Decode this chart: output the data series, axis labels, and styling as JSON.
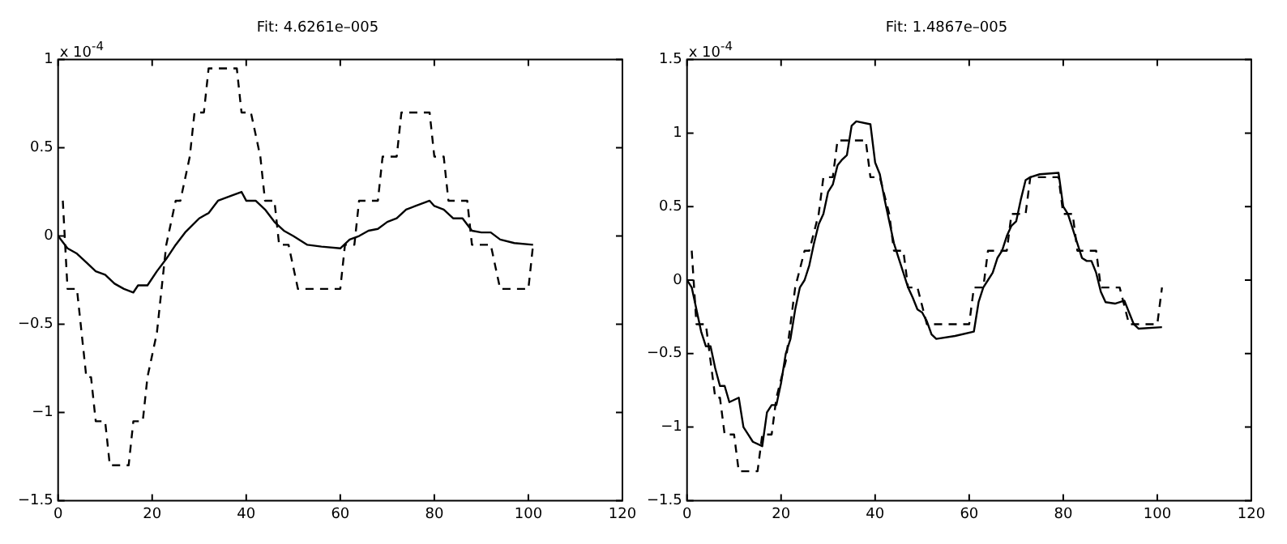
{
  "chart_data": [
    {
      "type": "line",
      "title": "Fit: 4.6261e–005",
      "annotations": [
        "x 10$^{-4}$"
      ],
      "xlim": [
        0,
        120
      ],
      "xticks": [
        0,
        20,
        40,
        60,
        80,
        100,
        120
      ],
      "ylim": [
        -1.5,
        1
      ],
      "yticks": [
        {
          "value": -1.5,
          "label": "−1.5"
        },
        {
          "value": -1,
          "label": "−1"
        },
        {
          "value": -0.5,
          "label": "−0.5"
        },
        0,
        0.5,
        1
      ],
      "series": [
        {
          "color": "#000000",
          "line_style": "solid",
          "x": [
            0,
            2,
            4,
            6,
            8,
            10,
            12,
            14,
            16,
            17,
            19,
            21,
            23,
            25,
            27,
            30,
            32,
            34,
            37,
            39,
            40,
            42,
            44,
            46,
            48,
            50,
            53,
            56,
            60,
            62,
            64,
            66,
            68,
            70,
            72,
            74,
            76,
            79,
            80,
            82,
            84,
            86,
            88,
            90,
            92,
            94,
            97,
            101
          ],
          "values": [
            0,
            -0.07,
            -0.1,
            -0.15,
            -0.2,
            -0.22,
            -0.27,
            -0.3,
            -0.32,
            -0.28,
            -0.28,
            -0.2,
            -0.13,
            -0.05,
            0.02,
            0.1,
            0.13,
            0.2,
            0.23,
            0.25,
            0.2,
            0.2,
            0.15,
            0.08,
            0.03,
            0,
            -0.05,
            -0.06,
            -0.07,
            -0.02,
            0,
            0.03,
            0.04,
            0.08,
            0.1,
            0.15,
            0.17,
            0.2,
            0.17,
            0.15,
            0.1,
            0.1,
            0.03,
            0.02,
            0.02,
            -0.02,
            -0.04,
            -0.05
          ]
        },
        {
          "color": "#000000",
          "line_style": "dashed",
          "x": [
            1,
            2,
            4,
            6,
            7,
            8,
            10,
            11,
            15,
            16,
            18,
            19,
            21,
            23,
            25,
            26,
            28,
            29,
            31,
            32,
            38,
            39,
            41,
            43,
            44,
            46,
            47,
            49,
            51,
            60,
            61,
            63,
            64,
            68,
            69,
            72,
            73,
            79,
            80,
            82,
            83,
            87,
            88,
            92,
            94,
            100,
            101
          ],
          "values": [
            0.2,
            -0.3,
            -0.3,
            -0.8,
            -0.8,
            -1.05,
            -1.05,
            -1.3,
            -1.3,
            -1.05,
            -1.05,
            -0.8,
            -0.55,
            -0.05,
            0.2,
            0.2,
            0.45,
            0.7,
            0.7,
            0.95,
            0.95,
            0.7,
            0.7,
            0.45,
            0.2,
            0.2,
            -0.05,
            -0.05,
            -0.3,
            -0.3,
            -0.05,
            -0.05,
            0.2,
            0.2,
            0.45,
            0.45,
            0.7,
            0.7,
            0.45,
            0.45,
            0.2,
            0.2,
            -0.05,
            -0.05,
            -0.3,
            -0.3,
            -0.05
          ]
        }
      ]
    },
    {
      "type": "line",
      "title": "Fit: 1.4867e–005",
      "annotations": [
        "x 10$^{-4}$"
      ],
      "xlim": [
        0,
        120
      ],
      "xticks": [
        0,
        20,
        40,
        60,
        80,
        100,
        120
      ],
      "ylim": [
        -1.5,
        1.5
      ],
      "yticks": [
        {
          "value": -1.5,
          "label": "−1.5"
        },
        {
          "value": -1,
          "label": "−1"
        },
        {
          "value": -0.5,
          "label": "−0.5"
        },
        0,
        0.5,
        1,
        1.5
      ],
      "series": [
        {
          "color": "#000000",
          "line_style": "solid",
          "x": [
            0,
            1,
            2,
            3,
            4,
            5,
            6,
            7,
            8,
            9,
            11,
            12,
            13,
            14,
            16,
            17,
            18,
            19,
            20,
            21,
            22,
            23,
            24,
            25,
            26,
            27,
            28,
            29,
            30,
            31,
            32,
            33,
            34,
            35,
            36,
            39,
            40,
            41,
            42,
            43,
            44,
            45,
            46,
            47,
            48,
            49,
            50,
            51,
            52,
            53,
            57,
            61,
            62,
            63,
            64,
            65,
            66,
            67,
            68,
            69,
            70,
            71,
            72,
            73,
            75,
            79,
            80,
            81,
            82,
            83,
            84,
            85,
            86,
            87,
            88,
            89,
            91,
            93,
            94,
            95,
            96,
            101
          ],
          "values": [
            0,
            -0.05,
            -0.2,
            -0.35,
            -0.45,
            -0.45,
            -0.6,
            -0.72,
            -0.72,
            -0.83,
            -0.8,
            -1,
            -1.05,
            -1.1,
            -1.13,
            -0.9,
            -0.85,
            -0.85,
            -0.7,
            -0.5,
            -0.4,
            -0.2,
            -0.05,
            0,
            0.1,
            0.25,
            0.38,
            0.45,
            0.6,
            0.65,
            0.78,
            0.82,
            0.85,
            1.05,
            1.08,
            1.06,
            0.8,
            0.72,
            0.55,
            0.4,
            0.25,
            0.15,
            0.05,
            -0.05,
            -0.12,
            -0.2,
            -0.22,
            -0.28,
            -0.37,
            -0.4,
            -0.38,
            -0.35,
            -0.15,
            -0.05,
            0,
            0.05,
            0.15,
            0.2,
            0.3,
            0.37,
            0.4,
            0.55,
            0.68,
            0.7,
            0.72,
            0.73,
            0.5,
            0.45,
            0.35,
            0.25,
            0.15,
            0.13,
            0.13,
            0.05,
            -0.08,
            -0.15,
            -0.16,
            -0.14,
            -0.22,
            -0.3,
            -0.33,
            -0.32
          ]
        },
        {
          "color": "#000000",
          "line_style": "dashed",
          "x": [
            1,
            2,
            4,
            6,
            7,
            8,
            10,
            11,
            15,
            16,
            18,
            19,
            21,
            23,
            25,
            26,
            28,
            29,
            31,
            32,
            38,
            39,
            41,
            43,
            44,
            46,
            47,
            49,
            51,
            60,
            61,
            63,
            64,
            68,
            69,
            72,
            73,
            79,
            80,
            82,
            83,
            87,
            88,
            92,
            94,
            100,
            101
          ],
          "values": [
            0.2,
            -0.3,
            -0.3,
            -0.8,
            -0.8,
            -1.05,
            -1.05,
            -1.3,
            -1.3,
            -1.05,
            -1.05,
            -0.8,
            -0.55,
            -0.05,
            0.2,
            0.2,
            0.45,
            0.7,
            0.7,
            0.95,
            0.95,
            0.7,
            0.7,
            0.45,
            0.2,
            0.2,
            -0.05,
            -0.05,
            -0.3,
            -0.3,
            -0.05,
            -0.05,
            0.2,
            0.2,
            0.45,
            0.45,
            0.7,
            0.7,
            0.45,
            0.45,
            0.2,
            0.2,
            -0.05,
            -0.05,
            -0.3,
            -0.3,
            -0.05
          ]
        }
      ]
    }
  ]
}
